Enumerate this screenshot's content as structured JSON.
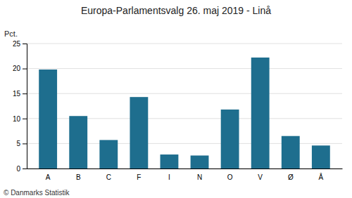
{
  "chart_data": {
    "type": "bar",
    "title": "Europa-Parlamentsvalg 26. maj 2019 - Linå",
    "categories": [
      "A",
      "B",
      "C",
      "F",
      "I",
      "N",
      "O",
      "V",
      "Ø",
      "Å"
    ],
    "values": [
      19.8,
      10.5,
      5.7,
      14.3,
      2.8,
      2.6,
      11.8,
      22.2,
      6.5,
      4.6
    ],
    "color": "#1e6e8e",
    "ylabel": "Pct.",
    "footer": "© Danmarks Statistik",
    "ylim": [
      0,
      25
    ],
    "yticks": [
      0,
      5,
      10,
      15,
      20,
      25
    ],
    "grid": true
  }
}
